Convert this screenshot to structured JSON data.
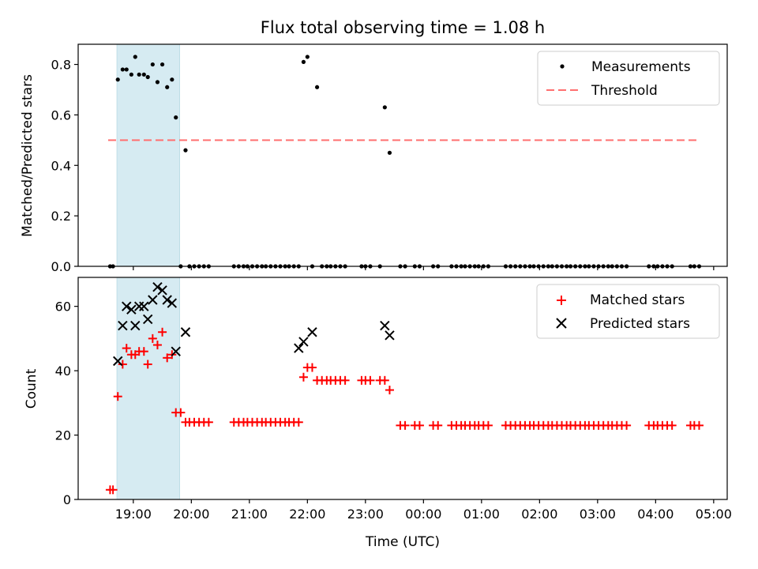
{
  "title": "Flux total observing time = 1.08 h",
  "colors": {
    "measurements": "#000000",
    "threshold": "#ff7070",
    "matched": "#ff0000",
    "predicted": "#000000",
    "span": "#add8e6"
  },
  "chart_data": [
    {
      "type": "scatter",
      "panel": "top",
      "title": "Flux total observing time = 1.08 h",
      "xlabel": "",
      "ylabel": "Matched/Predicted stars",
      "ylim": [
        0,
        0.88
      ],
      "yticks": [
        "0.0",
        "0.2",
        "0.4",
        "0.6",
        "0.8"
      ],
      "ytick_values": [
        0,
        0.2,
        0.4,
        0.6,
        0.8
      ],
      "grid": false,
      "legend_position": "upper right",
      "highlight_span": {
        "x_start": "18:43",
        "x_end": "19:48"
      },
      "threshold": {
        "name": "Threshold",
        "y": 0.5,
        "x_start": "18:34",
        "x_end": "04:45"
      },
      "series": [
        {
          "name": "Measurements",
          "marker": "dot",
          "x": [
            "18:36",
            "18:39",
            "18:44",
            "18:49",
            "18:53",
            "18:58",
            "19:02",
            "19:06",
            "19:11",
            "19:15",
            "19:20",
            "19:25",
            "19:30",
            "19:35",
            "19:40",
            "19:44",
            "19:49",
            "19:54",
            "19:58",
            "20:03",
            "20:08",
            "20:13",
            "20:18",
            "20:44",
            "20:49",
            "20:54",
            "20:58",
            "21:03",
            "21:08",
            "21:13",
            "21:17",
            "21:22",
            "21:27",
            "21:32",
            "21:37",
            "21:41",
            "21:46",
            "21:51",
            "21:56",
            "22:00",
            "22:05",
            "22:10",
            "22:15",
            "22:20",
            "22:24",
            "22:29",
            "22:34",
            "22:39",
            "22:56",
            "23:00",
            "23:05",
            "23:15",
            "23:20",
            "23:25",
            "23:36",
            "23:41",
            "23:51",
            "23:56",
            "00:10",
            "00:15",
            "00:29",
            "00:34",
            "00:39",
            "00:43",
            "00:48",
            "00:53",
            "00:57",
            "01:02",
            "01:07",
            "01:25",
            "01:30",
            "01:35",
            "01:40",
            "01:45",
            "01:50",
            "01:54",
            "01:59",
            "02:04",
            "02:09",
            "02:13",
            "02:18",
            "02:23",
            "02:28",
            "02:32",
            "02:37",
            "02:42",
            "02:47",
            "02:51",
            "02:56",
            "03:01",
            "03:06",
            "03:11",
            "03:15",
            "03:20",
            "03:25",
            "03:30",
            "03:53",
            "03:58",
            "04:02",
            "04:07",
            "04:12",
            "04:17",
            "04:36",
            "04:40",
            "04:45"
          ],
          "y": [
            0,
            0,
            0.74,
            0.78,
            0.78,
            0.76,
            0.83,
            0.76,
            0.76,
            0.75,
            0.8,
            0.73,
            0.8,
            0.71,
            0.74,
            0.59,
            0,
            0.46,
            0,
            0,
            0,
            0,
            0,
            0,
            0,
            0,
            0,
            0,
            0,
            0,
            0,
            0,
            0,
            0,
            0,
            0,
            0,
            0,
            0.81,
            0.83,
            0,
            0.71,
            0,
            0,
            0,
            0,
            0,
            0,
            0,
            0,
            0,
            0,
            0.63,
            0.45,
            0,
            0,
            0,
            0,
            0,
            0,
            0,
            0,
            0,
            0,
            0,
            0,
            0,
            0,
            0,
            0,
            0,
            0,
            0,
            0,
            0,
            0,
            0,
            0,
            0,
            0,
            0,
            0,
            0,
            0,
            0,
            0,
            0,
            0,
            0,
            0,
            0,
            0,
            0,
            0,
            0,
            0,
            0,
            0,
            0,
            0,
            0,
            0,
            0,
            0,
            0
          ]
        }
      ]
    },
    {
      "type": "scatter",
      "panel": "bottom",
      "xlabel": "Time (UTC)",
      "ylabel": "Count",
      "ylim": [
        0,
        69
      ],
      "yticks": [
        "0",
        "20",
        "40",
        "60"
      ],
      "ytick_values": [
        0,
        20,
        40,
        60
      ],
      "xlim": [
        "18:03",
        "05:14"
      ],
      "xticks": [
        "19:00",
        "20:00",
        "21:00",
        "22:00",
        "23:00",
        "00:00",
        "01:00",
        "02:00",
        "03:00",
        "04:00",
        "05:00"
      ],
      "xtick_minutes_from_first": [
        0,
        60,
        120,
        180,
        240,
        300,
        360,
        420,
        480,
        540,
        600
      ],
      "grid": false,
      "legend_position": "upper right",
      "highlight_span": {
        "x_start": "18:43",
        "x_end": "19:48"
      },
      "series": [
        {
          "name": "Matched stars",
          "marker": "plus",
          "x": [
            "18:36",
            "18:39",
            "18:44",
            "18:49",
            "18:53",
            "18:58",
            "19:02",
            "19:06",
            "19:11",
            "19:15",
            "19:20",
            "19:25",
            "19:30",
            "19:35",
            "19:40",
            "19:44",
            "19:49",
            "19:54",
            "19:58",
            "20:03",
            "20:08",
            "20:13",
            "20:18",
            "20:44",
            "20:49",
            "20:54",
            "20:58",
            "21:03",
            "21:08",
            "21:13",
            "21:17",
            "21:22",
            "21:27",
            "21:32",
            "21:37",
            "21:41",
            "21:46",
            "21:51",
            "21:56",
            "22:00",
            "22:05",
            "22:10",
            "22:15",
            "22:20",
            "22:24",
            "22:29",
            "22:34",
            "22:39",
            "22:56",
            "23:00",
            "23:05",
            "23:15",
            "23:20",
            "23:25",
            "23:36",
            "23:41",
            "23:51",
            "23:56",
            "00:10",
            "00:15",
            "00:29",
            "00:34",
            "00:39",
            "00:43",
            "00:48",
            "00:53",
            "00:57",
            "01:02",
            "01:07",
            "01:25",
            "01:30",
            "01:35",
            "01:40",
            "01:45",
            "01:50",
            "01:54",
            "01:59",
            "02:04",
            "02:09",
            "02:13",
            "02:18",
            "02:23",
            "02:28",
            "02:32",
            "02:37",
            "02:42",
            "02:47",
            "02:51",
            "02:56",
            "03:01",
            "03:06",
            "03:11",
            "03:15",
            "03:20",
            "03:25",
            "03:30",
            "03:53",
            "03:58",
            "04:02",
            "04:07",
            "04:12",
            "04:17",
            "04:36",
            "04:40",
            "04:45"
          ],
          "y": [
            3,
            3,
            32,
            42,
            47,
            45,
            45,
            46,
            46,
            42,
            50,
            48,
            52,
            44,
            45,
            27,
            27,
            24,
            24,
            24,
            24,
            24,
            24,
            24,
            24,
            24,
            24,
            24,
            24,
            24,
            24,
            24,
            24,
            24,
            24,
            24,
            24,
            24,
            38,
            41,
            41,
            37,
            37,
            37,
            37,
            37,
            37,
            37,
            37,
            37,
            37,
            37,
            37,
            34,
            23,
            23,
            23,
            23,
            23,
            23,
            23,
            23,
            23,
            23,
            23,
            23,
            23,
            23,
            23,
            23,
            23,
            23,
            23,
            23,
            23,
            23,
            23,
            23,
            23,
            23,
            23,
            23,
            23,
            23,
            23,
            23,
            23,
            23,
            23,
            23,
            23,
            23,
            23,
            23,
            23,
            23,
            23,
            23,
            23,
            23,
            23,
            23,
            23,
            23,
            23
          ]
        },
        {
          "name": "Predicted stars",
          "marker": "x",
          "x": [
            "18:44",
            "18:49",
            "18:53",
            "18:58",
            "19:02",
            "19:06",
            "19:11",
            "19:15",
            "19:20",
            "19:25",
            "19:30",
            "19:35",
            "19:40",
            "19:44",
            "19:54",
            "21:51",
            "21:56",
            "22:05",
            "23:20",
            "23:25"
          ],
          "y": [
            43,
            54,
            60,
            59,
            54,
            60,
            60,
            56,
            62,
            66,
            65,
            62,
            61,
            46,
            52,
            47,
            49,
            52,
            54,
            51
          ]
        }
      ]
    }
  ]
}
